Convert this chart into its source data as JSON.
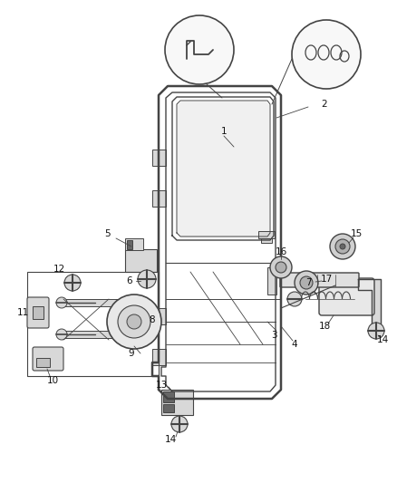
{
  "bg_color": "#ffffff",
  "fig_width": 4.38,
  "fig_height": 5.33,
  "dpi": 100,
  "line_color": "#444444",
  "light_gray": "#d8d8d8",
  "mid_gray": "#aaaaaa",
  "dark_gray": "#666666"
}
